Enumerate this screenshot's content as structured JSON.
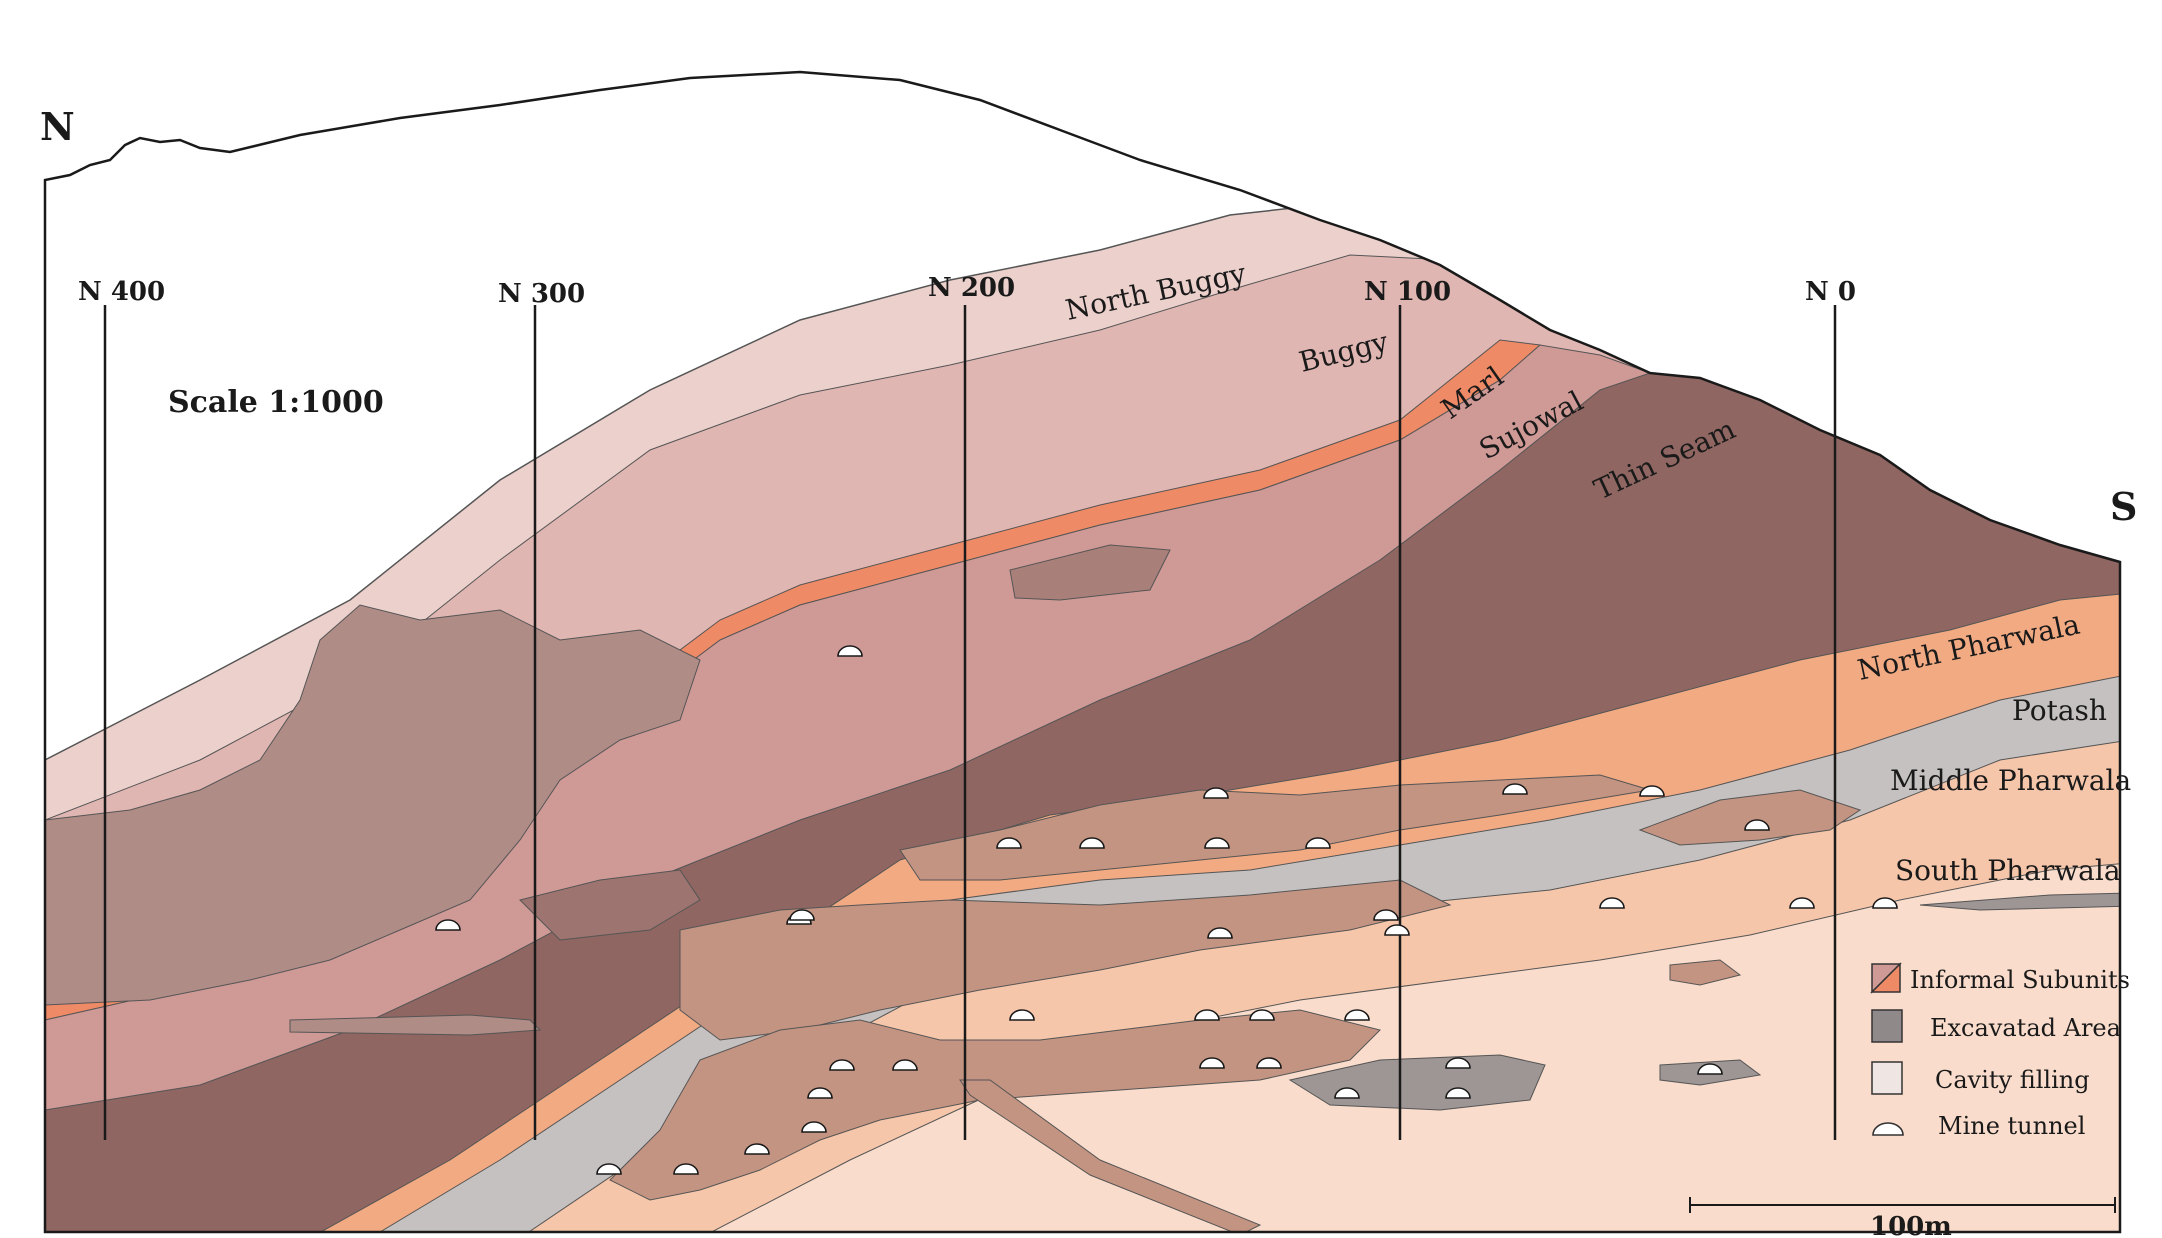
{
  "orientation": {
    "north": "N",
    "south": "S"
  },
  "scale_text": "Scale 1:1000",
  "section_lines": [
    "N 400",
    "N 300",
    "N 200",
    "N 100",
    "N 0"
  ],
  "layers": {
    "north_buggy": "North Buggy",
    "buggy": "Buggy",
    "marl": "Marl",
    "sujowal": "Sujowal",
    "thin_seam": "Thin Seam",
    "north_pharwala": "North Pharwala",
    "potash": "Potash",
    "middle_pharwala": "Middle Pharwala",
    "south_pharwala": "South Pharwala"
  },
  "legend": {
    "informal_subunits": "Informal Subunits",
    "excavated_area": "Excavatad Area",
    "cavity_filling": "Cavity filling",
    "mine_tunnel": "Mine tunnel"
  },
  "scale_bar": "100m",
  "colors": {
    "north_buggy": "#ecd0cc",
    "buggy": "#e0b6b2",
    "marl": "#ef8a66",
    "sujowal": "#cf9996",
    "thin_seam": "#8f6661",
    "north_pharwala": "#f2aa83",
    "potash": "#c5c1c0",
    "middle_pharwala": "#f6c6aa",
    "south_pharwala": "#f9dccb",
    "excavated": "#b08c87",
    "excavated_grey": "#9e9694",
    "cavity": "#c49482"
  }
}
